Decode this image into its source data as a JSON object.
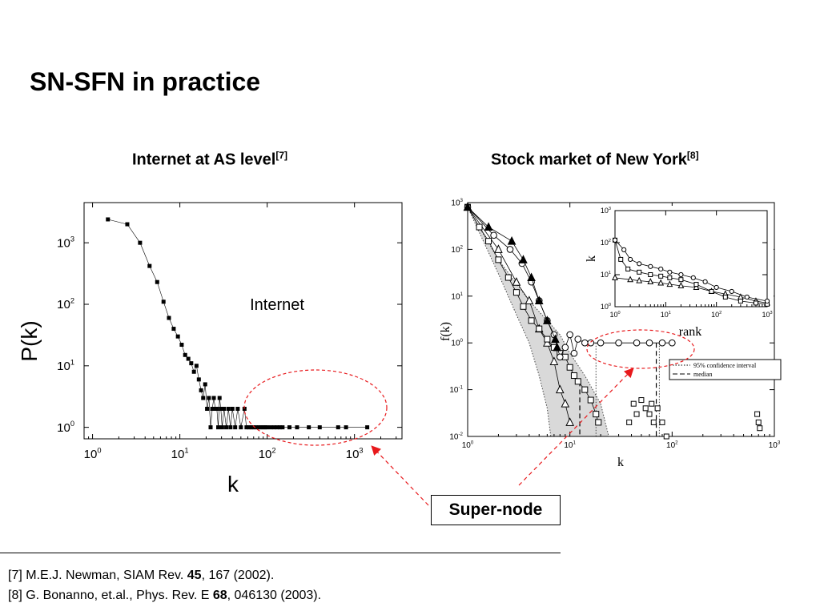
{
  "slide": {
    "title": "SN-SFN in practice",
    "left_subtitle": "Internet at AS level",
    "left_ref": "[7]",
    "right_subtitle": "Stock market of New York",
    "right_ref": "[8]",
    "callout": "Super-node",
    "references": [
      {
        "pre": "[7] M.E.J. Newman, SIAM Rev. ",
        "bold": "45",
        "post": ", 167 (2002)."
      },
      {
        "pre": "[8] G. Bonanno, et.al., Phys. Rev. E ",
        "bold": "68",
        "post": ", 046130 (2003)."
      }
    ],
    "colors": {
      "highlight": "#e8191c",
      "text": "#000000",
      "band": "#d9d9d9"
    }
  },
  "chart_data": [
    {
      "type": "scatter",
      "title": "Internet at AS level",
      "xlabel": "k",
      "ylabel": "P(k)",
      "xscale": "log",
      "yscale": "log",
      "xlim": [
        0.8,
        3500
      ],
      "ylim": [
        0.65,
        4500
      ],
      "xticks": [
        "10^0",
        "10^1",
        "10^2",
        "10^3"
      ],
      "yticks": [
        "10^0",
        "10^1",
        "10^2",
        "10^3"
      ],
      "annotation": "Internet",
      "series": [
        {
          "name": "Internet",
          "points": [
            [
              1.5,
              2400
            ],
            [
              2.5,
              2000
            ],
            [
              3.5,
              1000
            ],
            [
              4.5,
              420
            ],
            [
              5.5,
              230
            ],
            [
              6.5,
              110
            ],
            [
              7.5,
              60
            ],
            [
              8.5,
              40
            ],
            [
              9.5,
              30
            ],
            [
              10.5,
              22
            ],
            [
              11.5,
              15
            ],
            [
              12.5,
              13
            ],
            [
              13.5,
              11
            ],
            [
              14.5,
              8
            ],
            [
              15.5,
              10
            ],
            [
              16.5,
              6
            ],
            [
              17.5,
              4
            ],
            [
              18.5,
              3
            ],
            [
              19.5,
              5
            ],
            [
              20.5,
              2
            ],
            [
              21.5,
              3
            ],
            [
              22.5,
              1
            ],
            [
              23.5,
              2
            ],
            [
              24.5,
              3
            ],
            [
              25.5,
              2
            ],
            [
              26.5,
              2
            ],
            [
              27.5,
              1
            ],
            [
              28.5,
              3
            ],
            [
              29.5,
              2
            ],
            [
              30.5,
              1
            ],
            [
              32,
              2
            ],
            [
              34,
              1
            ],
            [
              36,
              2
            ],
            [
              38,
              1
            ],
            [
              40,
              2
            ],
            [
              43,
              1
            ],
            [
              46,
              2
            ],
            [
              50,
              1
            ],
            [
              55,
              2
            ],
            [
              58,
              1
            ],
            [
              62,
              1
            ],
            [
              66,
              1
            ],
            [
              70,
              1
            ],
            [
              75,
              1
            ],
            [
              80,
              1
            ],
            [
              85,
              1
            ],
            [
              90,
              1
            ],
            [
              95,
              1
            ],
            [
              100,
              1
            ],
            [
              110,
              1
            ],
            [
              120,
              1
            ],
            [
              130,
              1
            ],
            [
              140,
              1
            ],
            [
              150,
              1
            ],
            [
              180,
              1
            ],
            [
              220,
              1
            ],
            [
              300,
              1
            ],
            [
              400,
              1
            ],
            [
              650,
              1
            ],
            [
              800,
              1
            ],
            [
              1400,
              1
            ]
          ]
        }
      ]
    },
    {
      "type": "line",
      "title": "Stock market of New York",
      "xlabel": "k",
      "ylabel": "f(k)",
      "xscale": "log",
      "yscale": "log",
      "xlim": [
        1,
        1000
      ],
      "ylim": [
        0.01,
        1000
      ],
      "xticks": [
        "10^0",
        "10^1",
        "10^2",
        "10^3"
      ],
      "yticks": [
        "10^-2",
        "10^-1",
        "10^0",
        "10^1",
        "10^2",
        "10^3"
      ],
      "legend": {
        "position": "inside-right",
        "entries": [
          "95% confidence interval",
          "median"
        ]
      },
      "series": [
        {
          "name": "triangles-filled",
          "points": [
            [
              1,
              800
            ],
            [
              1.6,
              300
            ],
            [
              2.7,
              150
            ],
            [
              3.5,
              60
            ],
            [
              4.2,
              25
            ],
            [
              5,
              8
            ],
            [
              6,
              3
            ],
            [
              7.2,
              1.2
            ],
            [
              7.5,
              0.8
            ]
          ]
        },
        {
          "name": "circles",
          "points": [
            [
              1,
              800
            ],
            [
              1.8,
              200
            ],
            [
              2.6,
              100
            ],
            [
              3.4,
              50
            ],
            [
              4.2,
              20
            ],
            [
              5,
              8
            ],
            [
              6,
              3
            ],
            [
              7,
              1.5
            ],
            [
              8,
              0.5
            ],
            [
              9,
              0.8
            ],
            [
              10,
              1.5
            ],
            [
              11,
              0.6
            ],
            [
              12,
              1.2
            ],
            [
              14,
              1
            ],
            [
              16,
              1
            ],
            [
              20,
              1
            ],
            [
              30,
              1
            ],
            [
              45,
              1
            ],
            [
              60,
              1
            ],
            [
              80,
              1
            ],
            [
              100,
              1
            ]
          ]
        },
        {
          "name": "squares",
          "points": [
            [
              1,
              800
            ],
            [
              1.3,
              300
            ],
            [
              1.6,
              150
            ],
            [
              2,
              60
            ],
            [
              2.5,
              25
            ],
            [
              3,
              12
            ],
            [
              3.5,
              6
            ],
            [
              4.2,
              3
            ],
            [
              5,
              2
            ],
            [
              6,
              1.2
            ],
            [
              7,
              0.8
            ],
            [
              8,
              0.6
            ],
            [
              9,
              0.5
            ],
            [
              10,
              0.3
            ],
            [
              11,
              0.2
            ],
            [
              12,
              0.15
            ],
            [
              14,
              0.1
            ],
            [
              16,
              0.06
            ],
            [
              18,
              0.03
            ],
            [
              19,
              0.02
            ]
          ]
        },
        {
          "name": "triangles-open",
          "points": [
            [
              1,
              800
            ],
            [
              2,
              100
            ],
            [
              3,
              20
            ],
            [
              4,
              8
            ],
            [
              5,
              2
            ],
            [
              6,
              1
            ],
            [
              7,
              0.4
            ],
            [
              8,
              0.1
            ],
            [
              9,
              0.05
            ],
            [
              10,
              0.02
            ]
          ]
        }
      ]
    },
    {
      "type": "line",
      "title": "inset",
      "xlabel": "rank",
      "ylabel": "k",
      "xscale": "log",
      "yscale": "log",
      "xlim": [
        1,
        1000
      ],
      "ylim": [
        1,
        1000
      ],
      "xticks": [
        "10^0",
        "10^1",
        "10^2",
        "10^3"
      ],
      "yticks": [
        "10^0",
        "10^1",
        "10^2",
        "10^3"
      ],
      "series": [
        {
          "name": "circles",
          "points": [
            [
              1,
              120
            ],
            [
              1.5,
              60
            ],
            [
              2,
              30
            ],
            [
              3,
              22
            ],
            [
              5,
              18
            ],
            [
              8,
              15
            ],
            [
              12,
              12
            ],
            [
              20,
              10
            ],
            [
              35,
              8
            ],
            [
              60,
              6
            ],
            [
              100,
              4
            ],
            [
              200,
              3
            ],
            [
              400,
              2
            ],
            [
              1000,
              1.5
            ]
          ]
        },
        {
          "name": "squares",
          "points": [
            [
              1,
              120
            ],
            [
              1.3,
              30
            ],
            [
              1.8,
              15
            ],
            [
              3,
              12
            ],
            [
              5,
              10
            ],
            [
              8,
              9
            ],
            [
              12,
              8
            ],
            [
              20,
              7
            ],
            [
              40,
              5
            ],
            [
              80,
              3
            ],
            [
              150,
              2
            ],
            [
              300,
              1.5
            ],
            [
              600,
              1.3
            ],
            [
              1000,
              1.2
            ]
          ]
        },
        {
          "name": "triangles-open",
          "points": [
            [
              1,
              8
            ],
            [
              2,
              7
            ],
            [
              3,
              6.5
            ],
            [
              5,
              6
            ],
            [
              8,
              5.5
            ],
            [
              12,
              5
            ],
            [
              20,
              4.5
            ],
            [
              40,
              4
            ],
            [
              80,
              3
            ],
            [
              150,
              2.5
            ],
            [
              300,
              2
            ],
            [
              600,
              1.5
            ],
            [
              1000,
              1.3
            ]
          ]
        }
      ]
    }
  ]
}
